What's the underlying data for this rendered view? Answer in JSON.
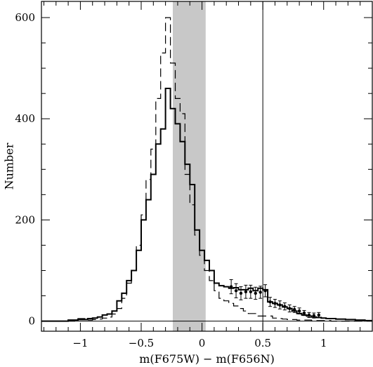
{
  "chart_data": {
    "type": "line",
    "title": "",
    "xlabel": "m(F675W) − m(F656N)",
    "ylabel": "Number",
    "xlim": [
      -1.32,
      1.4
    ],
    "ylim": [
      -20,
      632
    ],
    "xticks": [
      -1,
      -0.5,
      0,
      0.5,
      1
    ],
    "xtick_labels": [
      "−1",
      "−0.5",
      "0",
      "0.5",
      "1"
    ],
    "yticks": [
      0,
      200,
      400,
      600
    ],
    "ytick_labels": [
      "0",
      "200",
      "400",
      "600"
    ],
    "shaded_band": [
      -0.24,
      0.03
    ],
    "vertical_line": 0.5,
    "grid": false,
    "bin_edges": [
      -1.32,
      -1.26,
      -1.22,
      -1.18,
      -1.14,
      -1.1,
      -1.06,
      -1.02,
      -0.98,
      -0.94,
      -0.9,
      -0.86,
      -0.82,
      -0.78,
      -0.74,
      -0.7,
      -0.66,
      -0.62,
      -0.58,
      -0.54,
      -0.5,
      -0.46,
      -0.42,
      -0.38,
      -0.34,
      -0.3,
      -0.26,
      -0.22,
      -0.18,
      -0.14,
      -0.1,
      -0.06,
      -0.02,
      0.02,
      0.06,
      0.1,
      0.14,
      0.18,
      0.22,
      0.26,
      0.3,
      0.34,
      0.38,
      0.42,
      0.46,
      0.5,
      0.54,
      0.58,
      0.62,
      0.66,
      0.7,
      0.74,
      0.78,
      0.82,
      0.86,
      0.9,
      0.94,
      0.98,
      1.02,
      1.06,
      1.1,
      1.14,
      1.18,
      1.22,
      1.26,
      1.3,
      1.34,
      1.4
    ],
    "series": [
      {
        "style": "thick-solid",
        "values": [
          0,
          0,
          0,
          0,
          0,
          2,
          2,
          3,
          3,
          5,
          6,
          8,
          12,
          14,
          20,
          40,
          55,
          80,
          100,
          140,
          200,
          240,
          290,
          350,
          380,
          460,
          420,
          390,
          355,
          310,
          270,
          180,
          140,
          120,
          100,
          75,
          70,
          68,
          65,
          66,
          62,
          62,
          65,
          60,
          65,
          62,
          38,
          35,
          32,
          28,
          25,
          20,
          15,
          12,
          10,
          8,
          7,
          6,
          5,
          5,
          4,
          4,
          3,
          3,
          2,
          2,
          1
        ]
      },
      {
        "style": "dashed",
        "values": [
          0,
          0,
          0,
          0,
          0,
          0,
          0,
          5,
          5,
          2,
          3,
          4,
          6,
          8,
          14,
          25,
          45,
          75,
          100,
          150,
          210,
          280,
          340,
          440,
          530,
          600,
          510,
          440,
          410,
          290,
          230,
          170,
          130,
          100,
          80,
          60,
          45,
          40,
          35,
          30,
          25,
          20,
          15,
          15,
          10,
          10,
          10,
          6,
          5,
          4,
          3,
          3,
          2,
          2,
          2,
          1,
          1,
          1,
          1,
          0,
          0,
          0,
          0,
          0,
          0,
          0,
          0
        ]
      },
      {
        "style": "thin-solid",
        "values": [
          0,
          0,
          0,
          0,
          0,
          0,
          0,
          0,
          0,
          0,
          0,
          0,
          0,
          0,
          0,
          0,
          0,
          0,
          0,
          0,
          0,
          0,
          0,
          0,
          0,
          0,
          0,
          0,
          0,
          0,
          0,
          0,
          0,
          0,
          0,
          0,
          0,
          0,
          0,
          0,
          0,
          0,
          0,
          0,
          0,
          0,
          0,
          0,
          0,
          0,
          0,
          0,
          0,
          0,
          0,
          0,
          0,
          0,
          0,
          0,
          0,
          0,
          0,
          0,
          0,
          0,
          0
        ]
      }
    ],
    "error_points": [
      {
        "x": 0.24,
        "y": 68,
        "err": 14
      },
      {
        "x": 0.28,
        "y": 60,
        "err": 14
      },
      {
        "x": 0.32,
        "y": 55,
        "err": 13
      },
      {
        "x": 0.36,
        "y": 58,
        "err": 13
      },
      {
        "x": 0.4,
        "y": 58,
        "err": 13
      },
      {
        "x": 0.44,
        "y": 55,
        "err": 12
      },
      {
        "x": 0.48,
        "y": 57,
        "err": 12
      },
      {
        "x": 0.52,
        "y": 60,
        "err": 12
      },
      {
        "x": 0.56,
        "y": 38,
        "err": 9
      },
      {
        "x": 0.6,
        "y": 35,
        "err": 8
      },
      {
        "x": 0.64,
        "y": 32,
        "err": 8
      },
      {
        "x": 0.68,
        "y": 29,
        "err": 7
      },
      {
        "x": 0.72,
        "y": 25,
        "err": 7
      },
      {
        "x": 0.76,
        "y": 23,
        "err": 6
      },
      {
        "x": 0.8,
        "y": 20,
        "err": 6
      },
      {
        "x": 0.84,
        "y": 16,
        "err": 5
      },
      {
        "x": 0.88,
        "y": 12,
        "err": 5
      },
      {
        "x": 0.92,
        "y": 11,
        "err": 5
      },
      {
        "x": 0.96,
        "y": 12,
        "err": 5
      }
    ]
  }
}
